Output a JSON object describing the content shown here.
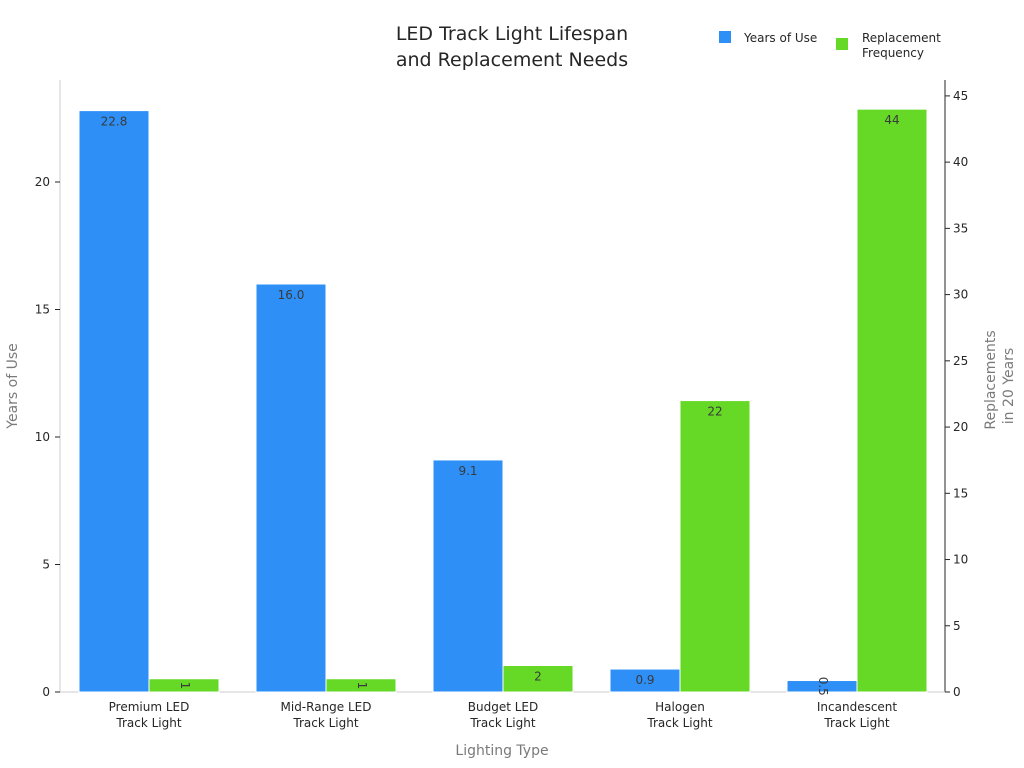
{
  "chart_data": {
    "type": "bar",
    "title_lines": [
      "LED Track Light Lifespan",
      "and Replacement Needs"
    ],
    "xlabel": "Lighting Type",
    "ylabel_left": "Years of Use",
    "ylabel_right_lines": [
      "Replacements",
      "in 20 Years"
    ],
    "categories": [
      [
        "Premium LED",
        "Track Light"
      ],
      [
        "Mid-Range LED",
        "Track Light"
      ],
      [
        "Budget LED",
        "Track Light"
      ],
      [
        "Halogen",
        "Track Light"
      ],
      [
        "Incandescent",
        "Track Light"
      ]
    ],
    "series": [
      {
        "name": "Years of Use",
        "axis": "left",
        "color": "#2e90f7",
        "values": [
          22.8,
          16.0,
          9.1,
          0.9,
          0.45
        ],
        "labels": [
          "22.8",
          "16.0",
          "9.1",
          "0.9",
          "0.5"
        ]
      },
      {
        "name_lines": [
          "Replacement",
          "Frequency"
        ],
        "axis": "right",
        "color": "#66d926",
        "values": [
          1,
          1,
          2,
          22,
          44
        ],
        "labels": [
          "1",
          "1",
          "2",
          "22",
          "44"
        ]
      }
    ],
    "ylim_left": [
      0,
      24
    ],
    "yticks_left": [
      "0",
      "5",
      "10",
      "15",
      "20"
    ],
    "ylim_right": [
      0,
      46.2
    ],
    "yticks_right": [
      "0",
      "5",
      "10",
      "15",
      "20",
      "25",
      "30",
      "35",
      "40",
      "45"
    ],
    "grid": false,
    "legend_position": "top-right"
  }
}
